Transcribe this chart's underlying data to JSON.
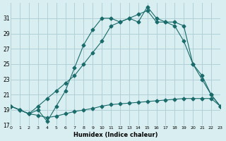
{
  "xlabel": "Humidex (Indice chaleur)",
  "bg_color": "#d8eef0",
  "line_color": "#1a6b6b",
  "grid_color": "#b0d0d8",
  "line1_x": [
    0,
    1,
    2,
    3,
    4,
    5,
    6,
    7,
    8,
    9,
    10,
    11,
    12,
    13,
    14,
    15,
    16,
    17,
    18,
    19,
    20,
    21,
    22,
    23
  ],
  "line1_y": [
    19.5,
    19.0,
    18.5,
    18.3,
    18.0,
    18.2,
    18.5,
    18.8,
    19.0,
    19.2,
    19.5,
    19.7,
    19.8,
    19.9,
    20.0,
    20.1,
    20.2,
    20.3,
    20.4,
    20.5,
    20.5,
    20.5,
    20.5,
    19.5
  ],
  "line2_x": [
    0,
    1,
    2,
    3,
    4,
    5,
    6,
    7,
    8,
    9,
    10,
    11,
    12,
    13,
    14,
    15,
    16,
    17,
    18,
    19,
    20,
    21,
    22,
    23
  ],
  "line2_y": [
    19.5,
    19.0,
    18.5,
    19.5,
    20.5,
    21.5,
    22.5,
    23.5,
    25.0,
    26.5,
    28.0,
    30.0,
    30.5,
    31.0,
    31.5,
    32.0,
    30.5,
    30.5,
    30.0,
    28.0,
    25.0,
    23.0,
    21.0,
    19.5
  ],
  "line3_x": [
    0,
    1,
    2,
    3,
    4,
    5,
    6,
    7,
    8,
    9,
    10,
    11,
    12,
    13,
    14,
    15,
    16,
    17,
    18,
    19,
    20,
    21,
    22,
    23
  ],
  "line3_y": [
    19.5,
    19.0,
    18.5,
    19.0,
    17.5,
    19.5,
    21.5,
    24.5,
    27.5,
    29.5,
    31.0,
    31.0,
    30.5,
    31.0,
    30.5,
    32.5,
    31.0,
    30.5,
    30.5,
    30.0,
    25.0,
    23.5,
    21.0,
    19.5
  ],
  "ylim": [
    17,
    33
  ],
  "xlim": [
    0,
    23
  ],
  "yticks": [
    17,
    19,
    21,
    23,
    25,
    27,
    29,
    31
  ],
  "xticks": [
    0,
    1,
    2,
    3,
    4,
    5,
    6,
    7,
    8,
    9,
    10,
    11,
    12,
    13,
    14,
    15,
    16,
    17,
    18,
    19,
    20,
    21,
    22,
    23
  ]
}
